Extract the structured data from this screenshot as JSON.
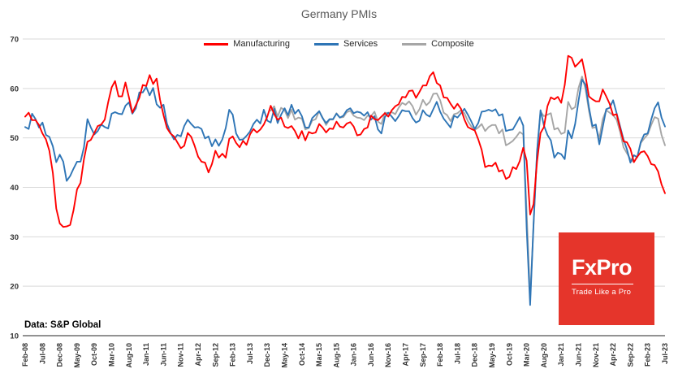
{
  "title": "Germany PMIs",
  "source_note": "Data: S&P Global",
  "logo": {
    "name": "FxPro",
    "tagline": "Trade Like a Pro",
    "bg_color": "#e5352b"
  },
  "legend": [
    {
      "label": "Manufacturing",
      "color": "#ff0000"
    },
    {
      "label": "Services",
      "color": "#2e75b6"
    },
    {
      "label": "Composite",
      "color": "#a6a6a6"
    }
  ],
  "chart_data": {
    "type": "line",
    "title": "Germany PMIs",
    "frequency": "monthly",
    "x_start": "Feb-08",
    "x_end": "Jul-23",
    "x_tick_step": 5,
    "x_tick_labels": [
      "Feb-08",
      "Jul-08",
      "Dec-08",
      "May-09",
      "Oct-09",
      "Mar-10",
      "Aug-10",
      "Jan-11",
      "Jun-11",
      "Nov-11",
      "Apr-12",
      "Sep-12",
      "Feb-13",
      "Jul-13",
      "Dec-13",
      "May-14",
      "Oct-14",
      "Mar-15",
      "Aug-15",
      "Jan-16",
      "Jun-16",
      "Nov-16",
      "Apr-17",
      "Sep-17",
      "Feb-18",
      "Jul-18",
      "Dec-18",
      "May-19",
      "Oct-19",
      "Mar-20",
      "Aug-20",
      "Jan-21",
      "Jun-21",
      "Nov-21",
      "Apr-22",
      "Sep-22",
      "Feb-23",
      "Jul-23"
    ],
    "ylim": [
      10,
      70
    ],
    "y_ticks": [
      10,
      20,
      30,
      40,
      50,
      60,
      70
    ],
    "grid": "horizontal",
    "legend_position": "top",
    "series": [
      {
        "name": "Manufacturing",
        "color": "#ff0000",
        "start_index": 0,
        "values": [
          54.3,
          55.1,
          53.6,
          53.6,
          52.6,
          50.9,
          49.7,
          47.4,
          42.9,
          35.7,
          32.7,
          32.0,
          32.1,
          32.4,
          35.4,
          39.6,
          40.9,
          45.7,
          49.2,
          49.6,
          51.0,
          52.4,
          52.7,
          53.7,
          57.2,
          60.2,
          61.5,
          58.4,
          58.4,
          61.2,
          58.2,
          55.1,
          56.6,
          58.1,
          60.7,
          60.5,
          62.7,
          60.9,
          62.0,
          57.7,
          54.6,
          52.0,
          50.9,
          50.3,
          49.1,
          47.9,
          48.4,
          51.0,
          50.2,
          48.4,
          46.2,
          45.2,
          45.0,
          43.0,
          44.7,
          47.4,
          46.0,
          46.8,
          46.0,
          49.8,
          50.3,
          49.0,
          48.1,
          49.4,
          48.6,
          50.7,
          51.8,
          51.1,
          51.7,
          52.7,
          54.3,
          56.5,
          54.8,
          53.7,
          54.1,
          52.3,
          52.0,
          52.4,
          51.4,
          49.9,
          51.4,
          49.5,
          51.2,
          50.9,
          51.1,
          52.8,
          52.1,
          51.1,
          51.9,
          51.8,
          53.3,
          52.3,
          52.1,
          52.9,
          53.2,
          52.3,
          50.5,
          50.7,
          51.8,
          52.1,
          54.5,
          53.8,
          53.6,
          54.3,
          55.0,
          54.3,
          55.6,
          56.4,
          56.8,
          58.3,
          58.2,
          59.5,
          59.6,
          58.1,
          59.3,
          60.6,
          60.6,
          62.5,
          63.3,
          61.1,
          60.6,
          58.2,
          58.1,
          56.9,
          55.9,
          56.9,
          55.9,
          53.7,
          52.2,
          51.8,
          51.5,
          49.7,
          47.6,
          44.1,
          44.4,
          44.3,
          45.0,
          43.2,
          43.5,
          41.7,
          42.1,
          44.1,
          43.7,
          45.3,
          48.0,
          45.4,
          34.5,
          36.6,
          45.2,
          51.0,
          52.2,
          56.4,
          58.2,
          57.8,
          58.3,
          57.1,
          60.7,
          66.6,
          66.2,
          64.4,
          65.1,
          65.9,
          62.6,
          58.4,
          57.8,
          57.4,
          57.4,
          59.8,
          58.4,
          56.9,
          54.6,
          54.8,
          52.0,
          49.3,
          49.1,
          47.8,
          45.1,
          46.2,
          47.1,
          47.3,
          46.3,
          44.7,
          44.5,
          43.2,
          40.6,
          38.8
        ]
      },
      {
        "name": "Services",
        "color": "#2e75b6",
        "start_index": 0,
        "values": [
          52.2,
          51.8,
          54.9,
          53.8,
          52.1,
          53.1,
          50.6,
          50.2,
          48.3,
          45.1,
          46.6,
          45.2,
          41.3,
          42.3,
          43.8,
          45.2,
          45.2,
          48.1,
          53.8,
          52.1,
          50.7,
          51.4,
          52.7,
          52.2,
          51.9,
          54.9,
          55.2,
          54.9,
          54.8,
          56.5,
          57.2,
          54.9,
          56.0,
          59.2,
          59.2,
          60.3,
          58.6,
          60.1,
          56.8,
          56.1,
          56.7,
          52.9,
          51.1,
          49.7,
          50.6,
          50.3,
          52.4,
          53.7,
          52.8,
          52.1,
          52.2,
          51.8,
          49.9,
          50.3,
          48.3,
          49.7,
          48.4,
          49.7,
          52.0,
          55.7,
          54.7,
          50.9,
          49.6,
          49.7,
          50.4,
          51.3,
          52.8,
          53.7,
          52.9,
          55.7,
          53.5,
          53.1,
          55.9,
          53.0,
          54.7,
          56.0,
          54.6,
          56.7,
          54.9,
          55.7,
          54.4,
          52.1,
          52.1,
          54.0,
          54.7,
          55.4,
          54.0,
          53.0,
          53.8,
          53.8,
          54.9,
          54.1,
          54.5,
          55.6,
          56.0,
          55.0,
          55.3,
          55.1,
          54.5,
          55.2,
          53.7,
          54.4,
          51.7,
          50.9,
          54.2,
          55.1,
          54.3,
          53.4,
          54.4,
          55.6,
          55.4,
          55.4,
          54.0,
          53.1,
          53.5,
          55.6,
          54.7,
          54.3,
          55.8,
          57.3,
          55.3,
          53.9,
          53.0,
          52.1,
          54.5,
          54.1,
          55.0,
          55.9,
          54.7,
          53.3,
          51.8,
          53.0,
          55.3,
          55.4,
          55.7,
          55.4,
          55.8,
          54.5,
          54.8,
          51.4,
          51.6,
          51.7,
          52.9,
          54.2,
          52.5,
          31.7,
          16.2,
          32.6,
          47.3,
          55.6,
          52.5,
          50.6,
          49.5,
          46.0,
          47.0,
          46.7,
          45.7,
          51.5,
          49.9,
          52.8,
          57.5,
          61.8,
          60.8,
          56.2,
          52.4,
          52.7,
          48.7,
          52.2,
          55.8,
          56.1,
          57.6,
          55.0,
          52.4,
          49.7,
          47.7,
          45.0,
          46.5,
          46.1,
          49.2,
          50.7,
          50.9,
          53.7,
          56.0,
          57.2,
          54.1,
          52.3
        ]
      },
      {
        "name": "Composite",
        "color": "#a6a6a6",
        "start_index": 71,
        "values": [
          55.5,
          56.4,
          54.3,
          56.1,
          55.6,
          54.0,
          55.7,
          53.7,
          54.1,
          53.9,
          51.7,
          52.0,
          53.5,
          53.8,
          55.4,
          54.1,
          52.6,
          53.7,
          53.7,
          55.0,
          54.1,
          54.2,
          55.2,
          55.5,
          54.5,
          54.1,
          54.0,
          53.6,
          54.5,
          54.4,
          55.3,
          53.3,
          52.8,
          55.1,
          55.0,
          55.2,
          54.8,
          56.1,
          57.1,
          56.7,
          57.4,
          56.4,
          54.7,
          55.8,
          57.7,
          56.6,
          57.3,
          58.9,
          59.0,
          57.6,
          55.1,
          54.6,
          53.4,
          54.8,
          55.0,
          55.6,
          55.0,
          53.4,
          52.3,
          51.6,
          52.1,
          52.8,
          51.4,
          52.2,
          52.6,
          52.6,
          50.9,
          51.7,
          48.5,
          48.9,
          49.4,
          50.2,
          51.2,
          50.7,
          35.0,
          17.4,
          32.3,
          47.0,
          55.3,
          54.4,
          54.7,
          55.0,
          51.7,
          52.0,
          50.8,
          51.1,
          57.3,
          55.8,
          56.2,
          60.1,
          62.4,
          60.0,
          55.5,
          52.0,
          52.2,
          49.9,
          53.8,
          55.6,
          55.1,
          54.6,
          53.7,
          51.3,
          48.1,
          46.9,
          45.7,
          45.1,
          46.3,
          49.0,
          49.9,
          50.7,
          52.6,
          54.2,
          53.9,
          50.6,
          48.5
        ]
      }
    ]
  }
}
